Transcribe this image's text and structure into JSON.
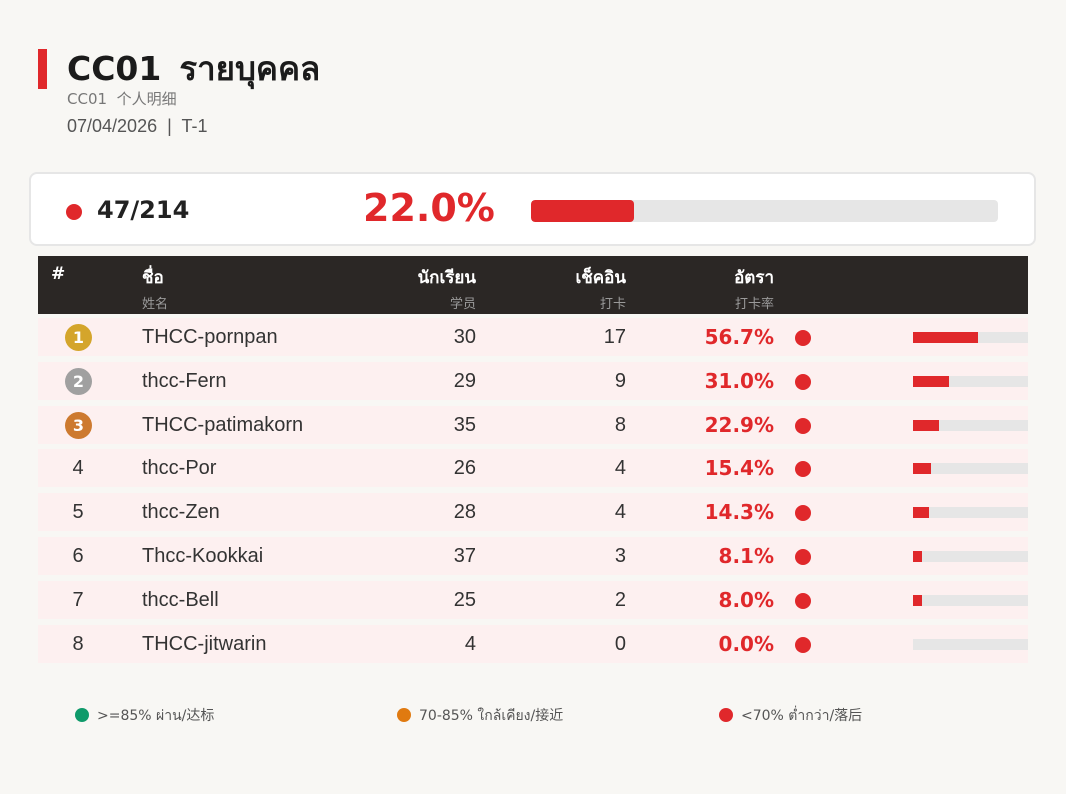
{
  "header": {
    "title_code": "CC01",
    "title_text": "รายบุคคล",
    "subtitle": "CC01  个人明细",
    "date_line": "07/04/2026  |  T-1"
  },
  "summary": {
    "count": "47/214",
    "percent_text": "22.0%",
    "progress": 0.22,
    "status_color": "#e0282b"
  },
  "table": {
    "headers": {
      "rank": "#",
      "name_th": "ชื่อ",
      "name_zh": "姓名",
      "students_th": "นักเรียน",
      "students_zh": "学员",
      "checkins_th": "เช็คอิน",
      "checkins_zh": "打卡",
      "rate_th": "อัตรา",
      "rate_zh": "打卡率"
    },
    "rows": [
      {
        "rank": "1",
        "name": "THCC-pornpan",
        "students": "30",
        "checkins": "17",
        "rate": "56.7%",
        "fraction": 0.567
      },
      {
        "rank": "2",
        "name": "thcc-Fern",
        "students": "29",
        "checkins": "9",
        "rate": "31.0%",
        "fraction": 0.31
      },
      {
        "rank": "3",
        "name": "THCC-patimakorn",
        "students": "35",
        "checkins": "8",
        "rate": "22.9%",
        "fraction": 0.229
      },
      {
        "rank": "4",
        "name": "thcc-Por",
        "students": "26",
        "checkins": "4",
        "rate": "15.4%",
        "fraction": 0.154
      },
      {
        "rank": "5",
        "name": "thcc-Zen",
        "students": "28",
        "checkins": "4",
        "rate": "14.3%",
        "fraction": 0.143
      },
      {
        "rank": "6",
        "name": "Thcc-Kookkai",
        "students": "37",
        "checkins": "3",
        "rate": "8.1%",
        "fraction": 0.081
      },
      {
        "rank": "7",
        "name": "thcc-Bell",
        "students": "25",
        "checkins": "2",
        "rate": "8.0%",
        "fraction": 0.08
      },
      {
        "rank": "8",
        "name": "THCC-jitwarin",
        "students": "4",
        "checkins": "0",
        "rate": "0.0%",
        "fraction": 0.0
      }
    ]
  },
  "medal_colors": {
    "1": "#d4a52b",
    "2": "#a0a0a0",
    "3": "#cd7a2f"
  },
  "legend": [
    {
      "label": ">=85% ผ่าน/达标",
      "color": "#0f9a6a"
    },
    {
      "label": "70-85% ใกล้เคียง/接近",
      "color": "#e07a10"
    },
    {
      "label": "<70% ต่ำกว่า/落后",
      "color": "#e0282b"
    }
  ]
}
